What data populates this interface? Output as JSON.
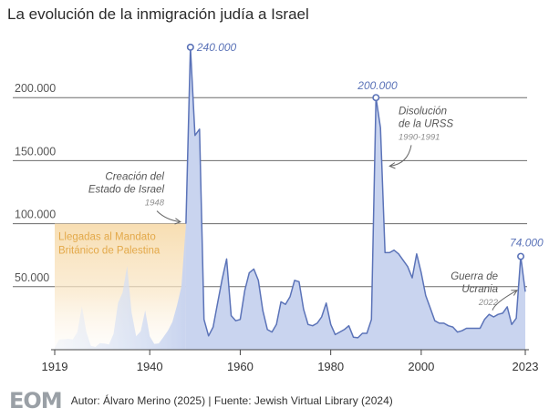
{
  "title": "La evolución de la inmigración judía a Israel",
  "footer": {
    "logo": "EOM",
    "credit": "Autor: Álvaro Merino (2025) | Fuente: Jewish Virtual Library (2024)"
  },
  "colors": {
    "line": "#5b73b8",
    "area": "#c9d4ef",
    "mandate": "#f7dcae",
    "mandate_text": "#e3a94a",
    "annotation": "#555555",
    "annotation_year": "#8f8f8f",
    "grid": "#6b6b6b",
    "tick": "#555555"
  },
  "chart_data": {
    "type": "area",
    "title": "La evolución de la inmigración judía a Israel",
    "xlabel": "",
    "ylabel": "",
    "xlim": [
      1919,
      2023
    ],
    "ylim": [
      0,
      250000
    ],
    "grid": "horizontal",
    "x_ticks": [
      {
        "value": 1919,
        "label": "1919"
      },
      {
        "value": 1940,
        "label": "1940"
      },
      {
        "value": 1960,
        "label": "1960"
      },
      {
        "value": 1980,
        "label": "1980"
      },
      {
        "value": 2000,
        "label": "2000"
      },
      {
        "value": 2023,
        "label": "2023"
      }
    ],
    "y_ticks": [
      {
        "value": 50000,
        "label": "50.000"
      },
      {
        "value": 100000,
        "label": "100.000"
      },
      {
        "value": 150000,
        "label": "150.000"
      },
      {
        "value": 200000,
        "label": "200.000"
      }
    ],
    "mandate_period": {
      "start": 1919,
      "end": 1948,
      "top": 100000,
      "label": [
        "Llegadas al Mandato",
        "Británico de Palestina"
      ]
    },
    "mandate_series": {
      "x": [
        1919,
        1920,
        1921,
        1922,
        1923,
        1924,
        1925,
        1926,
        1927,
        1928,
        1929,
        1930,
        1931,
        1932,
        1933,
        1934,
        1935,
        1936,
        1937,
        1938,
        1939,
        1940,
        1941,
        1942,
        1943,
        1944,
        1945,
        1946,
        1947,
        1948
      ],
      "y": [
        1800,
        8200,
        8300,
        8700,
        8200,
        13900,
        34400,
        13900,
        3000,
        2200,
        5200,
        4900,
        4100,
        12600,
        37300,
        45300,
        66500,
        29600,
        10600,
        14700,
        31200,
        10600,
        4600,
        5000,
        10000,
        15000,
        22000,
        35000,
        50000,
        100000
      ]
    },
    "series": [
      {
        "name": "",
        "x": [
          1948,
          1949,
          1950,
          1951,
          1952,
          1953,
          1954,
          1955,
          1956,
          1957,
          1958,
          1959,
          1960,
          1961,
          1962,
          1963,
          1964,
          1965,
          1966,
          1967,
          1968,
          1969,
          1970,
          1971,
          1972,
          1973,
          1974,
          1975,
          1976,
          1977,
          1978,
          1979,
          1980,
          1981,
          1982,
          1983,
          1984,
          1985,
          1986,
          1987,
          1988,
          1989,
          1990,
          1991,
          1992,
          1993,
          1994,
          1995,
          1996,
          1997,
          1998,
          1999,
          2000,
          2001,
          2002,
          2003,
          2004,
          2005,
          2006,
          2007,
          2008,
          2009,
          2010,
          2011,
          2012,
          2013,
          2014,
          2015,
          2016,
          2017,
          2018,
          2019,
          2020,
          2021,
          2022,
          2023
        ],
        "y": [
          100000,
          240000,
          170000,
          175000,
          24000,
          11000,
          18000,
          37000,
          56000,
          72000,
          27000,
          23000,
          24000,
          47000,
          61000,
          64000,
          55000,
          31000,
          16000,
          14000,
          20000,
          38000,
          36000,
          42000,
          55000,
          54000,
          32000,
          20000,
          19000,
          21000,
          26000,
          37000,
          20000,
          12000,
          14000,
          16000,
          19000,
          10000,
          9500,
          13000,
          13000,
          24000,
          200000,
          176000,
          77000,
          77000,
          79000,
          76000,
          71000,
          66000,
          57000,
          76000,
          61000,
          43000,
          33000,
          23000,
          21000,
          21000,
          19000,
          18000,
          14000,
          15000,
          17000,
          17000,
          17000,
          17000,
          24000,
          28000,
          26000,
          28000,
          29000,
          34000,
          20000,
          25000,
          74000,
          46000
        ]
      }
    ],
    "annotations": [
      {
        "x": 1949,
        "y": 240000,
        "label": "240.000",
        "kind": "peak"
      },
      {
        "x": 1990,
        "y": 200000,
        "label": "200.000",
        "kind": "peak"
      },
      {
        "x": 2022,
        "y": 74000,
        "label": "74.000",
        "kind": "peak"
      },
      {
        "x": 1948,
        "y": 100000,
        "label": [
          "Creación del",
          "Estado de Israel"
        ],
        "year": "1948",
        "kind": "event"
      },
      {
        "x": 1991,
        "y": 150000,
        "label": [
          "Disolución",
          "de la URSS"
        ],
        "year": "1990-1991",
        "kind": "event"
      },
      {
        "x": 2022,
        "y": 50000,
        "label": [
          "Guerra de",
          "Ucrania"
        ],
        "year": "2022",
        "kind": "event"
      }
    ]
  }
}
